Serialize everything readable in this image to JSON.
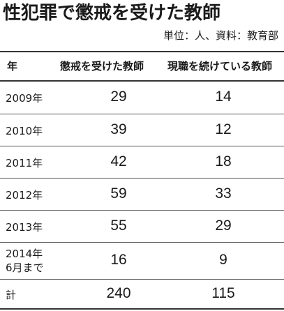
{
  "title": "性犯罪で懲戒を受けた教師",
  "unit_note": "単位：人、資料：教育部",
  "headers": {
    "year": "年",
    "punished": "懲戒を受けた教師",
    "still_teaching": "現職を続けている教師"
  },
  "rows": [
    {
      "year": "2009年",
      "punished": "29",
      "still_teaching": "14"
    },
    {
      "year": "2010年",
      "punished": "39",
      "still_teaching": "12"
    },
    {
      "year": "2011年",
      "punished": "42",
      "still_teaching": "18"
    },
    {
      "year": "2012年",
      "punished": "59",
      "still_teaching": "33"
    },
    {
      "year": "2013年",
      "punished": "55",
      "still_teaching": "29"
    },
    {
      "year_line1": "2014年",
      "year_line2": "6月まで",
      "punished": "16",
      "still_teaching": "9"
    }
  ],
  "total": {
    "label": "計",
    "punished": "240",
    "still_teaching": "115"
  }
}
